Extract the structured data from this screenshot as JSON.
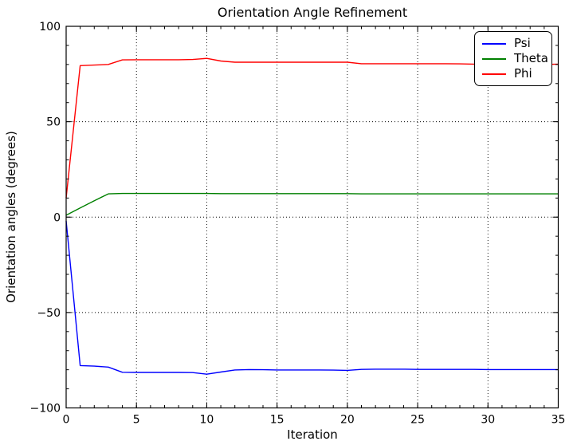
{
  "figure": {
    "title": "Orientation Angle Refinement",
    "xlabel": "Iteration",
    "ylabel": "Orientation angles (degrees)"
  },
  "chart_data": {
    "type": "line",
    "title": "Orientation Angle Refinement",
    "xlabel": "Iteration",
    "ylabel": "Orientation angles (degrees)",
    "xlim": [
      0,
      35
    ],
    "ylim": [
      -100,
      100
    ],
    "xticks": [
      0,
      5,
      10,
      15,
      20,
      25,
      30,
      35
    ],
    "yticks": [
      -100,
      -50,
      0,
      50,
      100
    ],
    "x_minor_step": 1,
    "y_minor_step": 10,
    "grid": "dotted black at major ticks",
    "legend_position": "upper right",
    "x": [
      0,
      1,
      2,
      3,
      4,
      5,
      6,
      7,
      8,
      9,
      10,
      11,
      12,
      13,
      14,
      15,
      16,
      17,
      18,
      19,
      20,
      21,
      22,
      23,
      24,
      25,
      26,
      27,
      28,
      29,
      30,
      31,
      32,
      33,
      34,
      35
    ],
    "series": [
      {
        "name": "Psi",
        "color": "#0000ff",
        "values": [
          -2,
          -77.8,
          -78.1,
          -78.6,
          -81.3,
          -81.4,
          -81.4,
          -81.4,
          -81.4,
          -81.5,
          -82.3,
          -81.2,
          -80.1,
          -79.9,
          -80.0,
          -80.1,
          -80.1,
          -80.1,
          -80.1,
          -80.2,
          -80.3,
          -79.8,
          -79.7,
          -79.7,
          -79.7,
          -79.8,
          -79.8,
          -79.8,
          -79.8,
          -79.8,
          -79.9,
          -79.9,
          -79.9,
          -79.9,
          -79.9,
          -79.9
        ]
      },
      {
        "name": "Theta",
        "color": "#008000",
        "values": [
          1.0,
          4.8,
          8.6,
          12.2,
          12.4,
          12.4,
          12.4,
          12.4,
          12.4,
          12.4,
          12.4,
          12.3,
          12.3,
          12.3,
          12.3,
          12.3,
          12.3,
          12.3,
          12.3,
          12.3,
          12.3,
          12.2,
          12.2,
          12.2,
          12.2,
          12.2,
          12.2,
          12.2,
          12.2,
          12.2,
          12.2,
          12.2,
          12.2,
          12.2,
          12.2,
          12.2
        ]
      },
      {
        "name": "Phi",
        "color": "#ff0000",
        "values": [
          10,
          79.4,
          79.7,
          80.0,
          82.4,
          82.5,
          82.5,
          82.5,
          82.5,
          82.6,
          83.2,
          81.8,
          81.2,
          81.2,
          81.2,
          81.2,
          81.2,
          81.2,
          81.2,
          81.2,
          81.2,
          80.4,
          80.4,
          80.4,
          80.4,
          80.4,
          80.4,
          80.4,
          80.3,
          80.2,
          80.2,
          80.1,
          80.0,
          79.9,
          80.0,
          80.2
        ]
      }
    ]
  }
}
